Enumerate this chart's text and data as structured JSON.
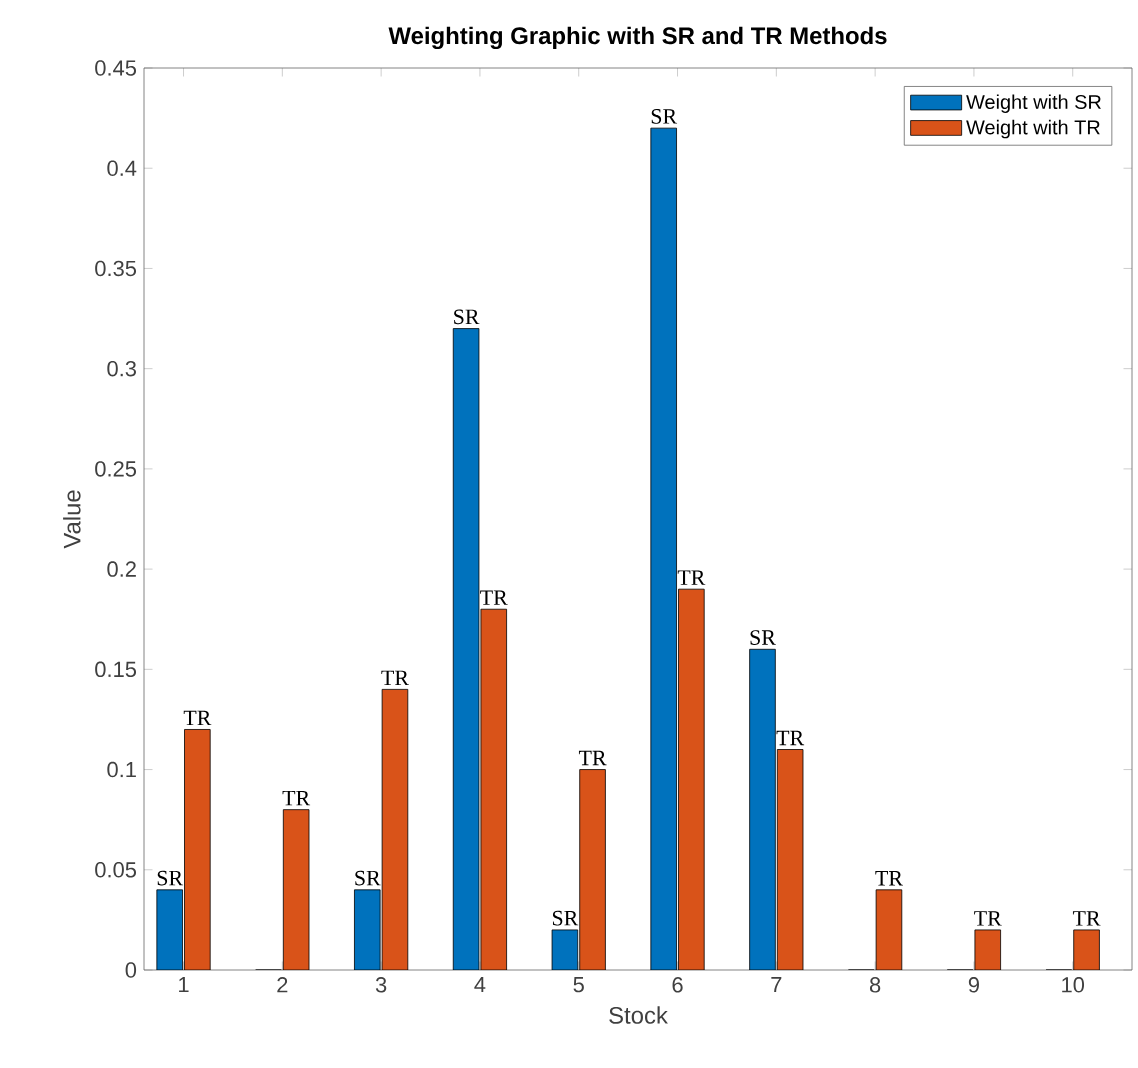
{
  "chart_data": {
    "type": "bar",
    "title": "Weighting Graphic with SR and TR Methods",
    "xlabel": "Stock",
    "ylabel": "Value",
    "categories": [
      "1",
      "2",
      "3",
      "4",
      "5",
      "6",
      "7",
      "8",
      "9",
      "10"
    ],
    "series": [
      {
        "name": "Weight with SR",
        "color": "#0072bd",
        "values": [
          0.04,
          0,
          0.04,
          0.32,
          0.02,
          0.42,
          0.16,
          0,
          0,
          0
        ]
      },
      {
        "name": "Weight with TR",
        "color": "#d95319",
        "values": [
          0.12,
          0.08,
          0.14,
          0.18,
          0.1,
          0.19,
          0.11,
          0.04,
          0.02,
          0.02
        ]
      }
    ],
    "ylim": [
      0,
      0.45
    ],
    "yticks": [
      0,
      0.05,
      0.1,
      0.15,
      0.2,
      0.25,
      0.3,
      0.35,
      0.4,
      0.45
    ],
    "legend": "top right",
    "grid": false,
    "annotations": [
      {
        "text": "SR",
        "x": "1",
        "y": 0.04
      },
      {
        "text": "TR",
        "x": "1",
        "y": 0.12
      },
      {
        "text": "TR",
        "x": "2",
        "y": 0.08
      },
      {
        "text": "SR",
        "x": "3",
        "y": 0.04
      },
      {
        "text": "TR",
        "x": "3",
        "y": 0.14
      },
      {
        "text": "SR",
        "x": "4",
        "y": 0.32
      },
      {
        "text": "TR",
        "x": "4",
        "y": 0.18
      },
      {
        "text": "SR",
        "x": "5",
        "y": 0.02
      },
      {
        "text": "TR",
        "x": "5",
        "y": 0.1
      },
      {
        "text": "SR",
        "x": "6",
        "y": 0.42
      },
      {
        "text": "TR",
        "x": "6",
        "y": 0.19
      },
      {
        "text": "SR",
        "x": "7",
        "y": 0.16
      },
      {
        "text": "TR",
        "x": "7",
        "y": 0.11
      },
      {
        "text": "TR",
        "x": "8",
        "y": 0.04
      },
      {
        "text": "TR",
        "x": "9",
        "y": 0.02
      },
      {
        "text": "TR",
        "x": "10",
        "y": 0.02
      }
    ]
  }
}
